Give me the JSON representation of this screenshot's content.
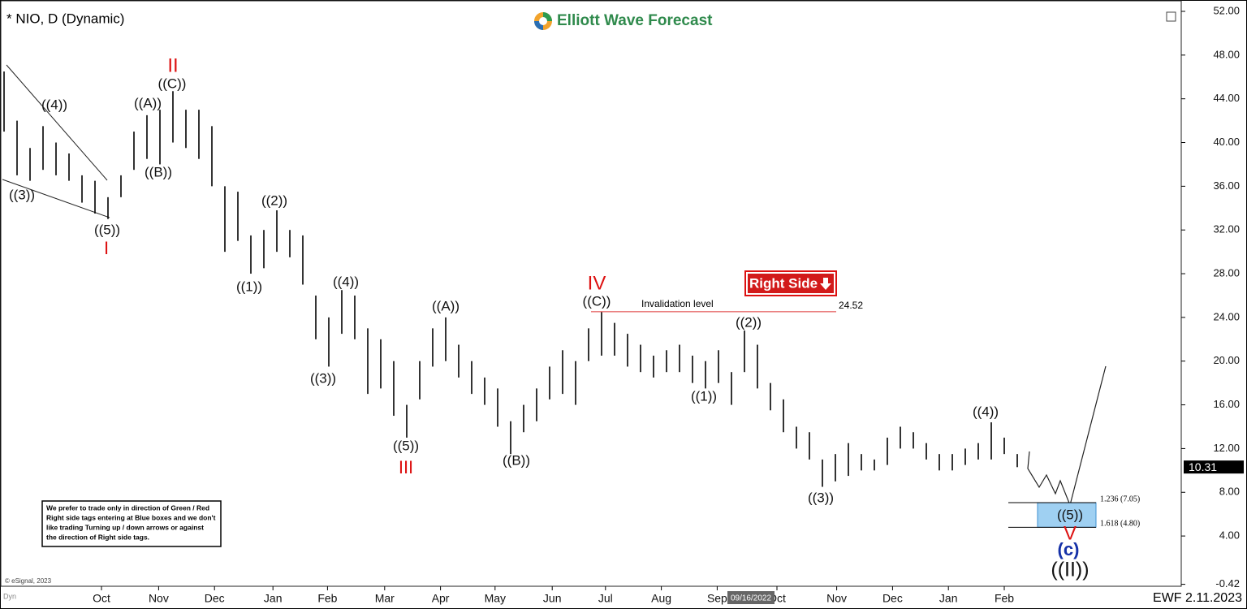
{
  "header": {
    "symbol": "* NIO, D (Dynamic)",
    "brand": "Elliott Wave Forecast"
  },
  "chart_data": {
    "type": "hilo",
    "color": "#000000",
    "high": [
      46.5,
      42,
      39.5,
      41.5,
      40,
      39,
      37,
      36.5,
      35,
      37,
      41,
      42.5,
      43,
      44.7,
      43,
      43,
      41.5,
      36,
      35.5,
      31.5,
      32,
      33.8,
      32,
      31.5,
      26,
      24,
      26.5,
      26,
      23,
      22,
      20,
      16,
      20,
      23,
      24,
      21.5,
      20,
      18.5,
      17.5,
      14.5,
      16,
      17.5,
      19.5,
      21,
      20,
      23,
      24.5,
      23.5,
      22.5,
      21.5,
      20.5,
      21,
      21.5,
      20.5,
      20,
      21,
      19,
      22.8,
      21.5,
      18,
      16.5,
      14,
      13.5,
      11,
      11.5,
      12.5,
      11.5,
      11,
      13,
      14,
      13.5,
      12.5,
      11.5,
      11.5,
      12,
      12.5,
      14.4,
      13,
      11.5
    ],
    "low": [
      41,
      37,
      36.5,
      37.5,
      37,
      36.5,
      34.5,
      33.5,
      33,
      35,
      37.5,
      38.5,
      38,
      40,
      39.5,
      38.5,
      36,
      30,
      31,
      28,
      28.5,
      30,
      29.5,
      27,
      22,
      19.5,
      22.5,
      22,
      17,
      17.5,
      15,
      13,
      16.5,
      19.5,
      20,
      18.5,
      17,
      16,
      14,
      11.5,
      13.5,
      14.5,
      16.5,
      17,
      16,
      20,
      20.5,
      20.5,
      19.5,
      19,
      18.5,
      19,
      19,
      18,
      17.5,
      18,
      16,
      19,
      17.5,
      15.5,
      13.5,
      12,
      11,
      8.5,
      9,
      9.5,
      10,
      10,
      10.5,
      12,
      12,
      11,
      10,
      10,
      10.5,
      11,
      11,
      11.5,
      10.3
    ],
    "xlim": [
      0,
      90.6
    ],
    "xticks": [
      {
        "value": 7.5,
        "label": "Oct"
      },
      {
        "value": 11.9,
        "label": "Nov"
      },
      {
        "value": 16.2,
        "label": "Dec"
      },
      {
        "value": 20.7,
        "label": "Jan"
      },
      {
        "value": 24.9,
        "label": "Feb"
      },
      {
        "value": 29.3,
        "label": "Mar"
      },
      {
        "value": 33.6,
        "label": "Apr"
      },
      {
        "value": 37.8,
        "label": "May"
      },
      {
        "value": 42.2,
        "label": "Jun"
      },
      {
        "value": 46.3,
        "label": "Jul"
      },
      {
        "value": 50.6,
        "label": "Aug"
      },
      {
        "value": 54.9,
        "label": "Sep"
      },
      {
        "value": 59.5,
        "label": "Oct"
      },
      {
        "value": 64.1,
        "label": "Nov"
      },
      {
        "value": 68.4,
        "label": "Dec"
      },
      {
        "value": 72.7,
        "label": "Jan"
      },
      {
        "value": 77,
        "label": "Feb"
      }
    ],
    "ylim": [
      -0.42,
      53.04
    ],
    "yticks": [
      {
        "value": -0.42,
        "label": "-0.42"
      },
      {
        "value": 4,
        "label": "4.00"
      },
      {
        "value": 8,
        "label": "8.00"
      },
      {
        "value": 12,
        "label": "12.00"
      },
      {
        "value": 16,
        "label": "16.00"
      },
      {
        "value": 20,
        "label": "20.00"
      },
      {
        "value": 24,
        "label": "24.00"
      },
      {
        "value": 28,
        "label": "28.00"
      },
      {
        "value": 32,
        "label": "32.00"
      },
      {
        "value": 36,
        "label": "36.00"
      },
      {
        "value": 40,
        "label": "40.00"
      },
      {
        "value": 44,
        "label": "44.00"
      },
      {
        "value": 48,
        "label": "48.00"
      },
      {
        "value": 52,
        "label": "52.00"
      }
    ],
    "last_price": 10.31,
    "invalidation": {
      "label": "Invalidation level",
      "value": 24.52
    },
    "fib_levels": [
      {
        "label": "1.236 (7.05)",
        "value": 7.05
      },
      {
        "label": "1.618 (4.80)",
        "value": 4.8
      }
    ],
    "cursor_date": "09/16/2022",
    "annotations": [
      "((3))",
      "((4))",
      "((5))",
      "I",
      "II",
      "((C))",
      "((A))",
      "((B))",
      "((2))",
      "((1))",
      "((4))",
      "((3))",
      "((5))",
      "III",
      "((A))",
      "((B))",
      "IV",
      "((C))",
      "((2))",
      "((1))",
      "((3))",
      "((4))",
      "((5))",
      "V",
      "(c)",
      "((II))"
    ]
  },
  "tag": "Right Side",
  "disclaimer": [
    "We prefer to trade only in direction of Green / Red",
    "Right side tags entering at Blue boxes and we don't",
    "like trading Turning up / down arrows or against",
    "the direction of Right side tags."
  ],
  "footer": {
    "copyright": "© eSignal, 2023",
    "dyn": "Dyn",
    "stamp": "EWF 2.11.2023"
  }
}
